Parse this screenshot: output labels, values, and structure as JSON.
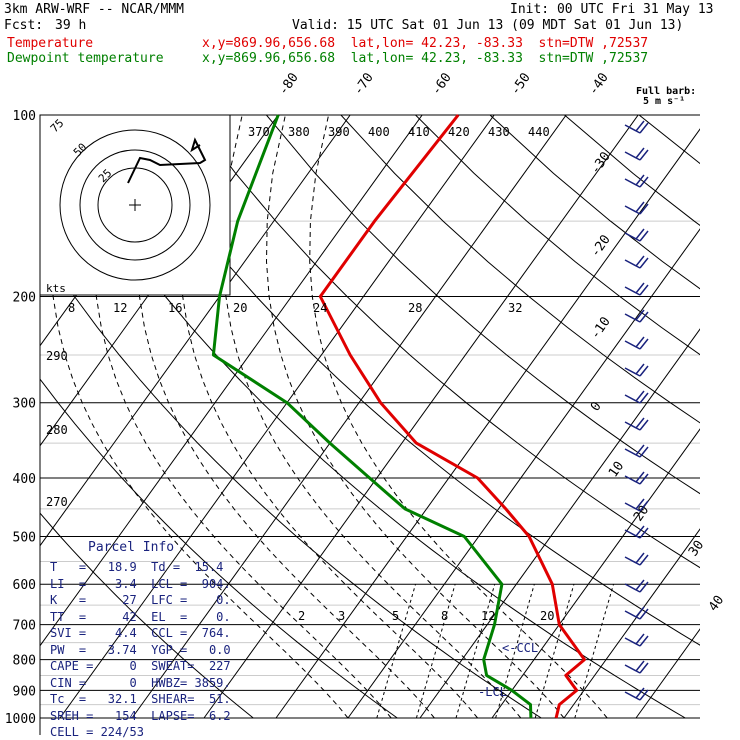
{
  "header": {
    "model": "3km ARW-WRF -- NCAR/MMM",
    "init": "Init: 00 UTC Fri 31 May 13",
    "fcst_label": "Fcst:",
    "fcst_value": "39 h",
    "valid": "Valid: 15 UTC Sat 01 Jun 13 (09 MDT Sat 01 Jun 13)",
    "temp_label": "Temperature",
    "temp_info": "x,y=869.96,656.68  lat,lon= 42.23, -83.33  stn=DTW ,72537",
    "dew_label": "Dewpoint temperature",
    "dew_info": "x,y=869.96,656.68  lat,lon= 42.23, -83.33  stn=DTW ,72537",
    "barb_title1": "Full barb:",
    "barb_title2": "5 m s⁻¹"
  },
  "colors": {
    "temperature": "#e00000",
    "dewpoint": "#008000",
    "parcel": "#1a237e",
    "grid": "#000000"
  },
  "chart_data": {
    "type": "line",
    "title": "Skew-T",
    "pressure_ticks": [
      "100",
      "200",
      "300",
      "400",
      "500",
      "600",
      "700",
      "800",
      "900",
      "1000"
    ],
    "skew_temp_labels": [
      "-80",
      "-70",
      "-60",
      "-50",
      "-40",
      "-30",
      "-20",
      "-10",
      "0",
      "10",
      "20",
      "30",
      "40"
    ],
    "theta_labels": [
      "370",
      "380",
      "390",
      "400",
      "410",
      "420",
      "430",
      "440"
    ],
    "mixing_ratio_labels": [
      "2",
      "3",
      "5",
      "8",
      "12",
      "20"
    ],
    "hodo_speed_labels": [
      "8",
      "12",
      "16",
      "20",
      "24",
      "28",
      "32"
    ],
    "hodo_kts": "kts",
    "hodo_ring_labels": [
      "75",
      "50",
      "25"
    ],
    "theta_e_labels": [
      "290",
      "280",
      "270"
    ],
    "ccl_label": "<-CCL",
    "lcl_label": "-LCL",
    "series": [
      {
        "name": "Temperature",
        "pressure": [
          100,
          150,
          200,
          250,
          300,
          350,
          400,
          450,
          500,
          600,
          700,
          800,
          850,
          900,
          950,
          1000
        ],
        "temp_c": [
          -55,
          -56,
          -56,
          -46,
          -37,
          -28,
          -16,
          -9,
          -3,
          5,
          10,
          17,
          16,
          19,
          18,
          18.9
        ]
      },
      {
        "name": "Dewpoint temperature",
        "pressure": [
          100,
          150,
          200,
          250,
          300,
          350,
          400,
          450,
          500,
          600,
          700,
          800,
          850,
          900,
          950,
          1000
        ],
        "temp_c": [
          -80,
          -75,
          -70,
          -65,
          -50,
          -40,
          -31,
          -23,
          -12,
          -2,
          1,
          3,
          5,
          10,
          14,
          15.4
        ]
      }
    ]
  },
  "parcel_info": {
    "title": "Parcel Info",
    "rows": [
      "T   =   18.9  Td =  15.4",
      "LI  =    3.4  LCL =  904.",
      "K   =     27  LFC =    0.",
      "TT  =     42  EL  =    0.",
      "SVI =    4.4  CCL =  764.",
      "PW  =   3.74  YGP =   0.0",
      "CAPE =     0  SWEAT=  227",
      "CIN =      0  HWBZ= 3859.",
      "Tc  =   32.1  SHEAR=  51.",
      "SREH =   154  LAPSE=  6.2",
      "CELL = 224/53"
    ]
  }
}
